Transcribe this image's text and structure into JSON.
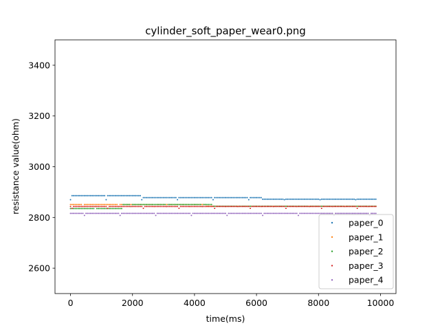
{
  "chart_data": {
    "type": "scatter",
    "title": "cylinder_soft_paper_wear0.png",
    "xlabel": "time(ms)",
    "ylabel": "resistance value(ohm)",
    "xlim": [
      -500,
      10500
    ],
    "ylim": [
      2500,
      3500
    ],
    "xticks": [
      0,
      2000,
      4000,
      6000,
      8000,
      10000
    ],
    "yticks": [
      2600,
      2800,
      3000,
      3200,
      3400
    ],
    "grid": false,
    "legend_position": "lower-right",
    "x_range": [
      0,
      9850
    ],
    "x_step": 50,
    "series": [
      {
        "name": "paper_0",
        "color": "#1f77b4",
        "segments": [
          {
            "x_start": 0,
            "x_end": 2300,
            "value": 2886
          },
          {
            "x_start": 2300,
            "x_end": 6200,
            "value": 2878
          },
          {
            "x_start": 6200,
            "x_end": 9850,
            "value": 2872
          }
        ],
        "outlier_value": 2870
      },
      {
        "name": "paper_1",
        "color": "#ff7f0e",
        "segments": [
          {
            "x_start": 0,
            "x_end": 4400,
            "value": 2851
          },
          {
            "x_start": 4400,
            "x_end": 9850,
            "value": 2844
          }
        ],
        "outlier_value": 2843
      },
      {
        "name": "paper_2",
        "color": "#2ca02c",
        "segments": [
          {
            "x_start": 0,
            "x_end": 1700,
            "value": 2835
          },
          {
            "x_start": 1700,
            "x_end": 4600,
            "value": 2851
          },
          {
            "x_start": 4600,
            "x_end": 9850,
            "value": 2844
          }
        ],
        "outlier_value": 2843
      },
      {
        "name": "paper_3",
        "color": "#d62728",
        "segments": [
          {
            "x_start": 0,
            "x_end": 9850,
            "value": 2843
          }
        ],
        "outlier_value": 2836
      },
      {
        "name": "paper_4",
        "color": "#9467bd",
        "segments": [
          {
            "x_start": 0,
            "x_end": 9850,
            "value": 2816
          }
        ],
        "outlier_value": 2808
      }
    ]
  }
}
